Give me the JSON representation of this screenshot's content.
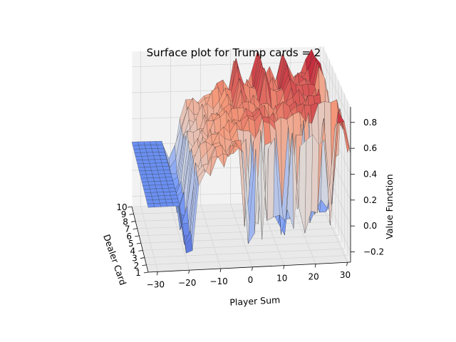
{
  "chart_data": {
    "type": "surface3d",
    "title": "Surface plot for Trump cards = 2",
    "xlabel": "Player Sum",
    "ylabel": "Dealer Card",
    "zlabel": "Value Function",
    "x_ticks": [
      -30,
      -20,
      -10,
      0,
      10,
      20,
      30
    ],
    "y_ticks": [
      1,
      2,
      3,
      4,
      5,
      6,
      7,
      8,
      9,
      10
    ],
    "z_ticks": [
      -0.2,
      0.0,
      0.2,
      0.4,
      0.6,
      0.8
    ],
    "x_tick_labels": [
      "−30",
      "−20",
      "−10",
      "0",
      "10",
      "20",
      "30"
    ],
    "y_tick_labels": [
      "1",
      "2",
      "3",
      "4",
      "5",
      "6",
      "7",
      "8",
      "9",
      "10"
    ],
    "z_tick_labels": [
      "−0.2",
      "0.0",
      "0.2",
      "0.4",
      "0.6",
      "0.8"
    ],
    "xlim": [
      -33,
      31
    ],
    "ylim": [
      1,
      10
    ],
    "zlim": [
      -0.28,
      0.92
    ],
    "colormap": "coolwarm",
    "grid": true,
    "x": [
      -33,
      -31,
      -29,
      -27,
      -25,
      -23,
      -21,
      -19,
      -17,
      -15,
      -13,
      -11,
      -9,
      -7,
      -5,
      -3,
      -1,
      1,
      3,
      5,
      7,
      9,
      11,
      13,
      15,
      17,
      19,
      21,
      23,
      25,
      27,
      29,
      31
    ],
    "value_profile_by_player_sum": [
      0.22,
      0.22,
      0.22,
      0.22,
      0.22,
      0.2,
      0.08,
      0.18,
      0.4,
      0.46,
      0.5,
      0.53,
      0.56,
      0.58,
      0.6,
      0.62,
      0.63,
      0.64,
      0.65,
      0.66,
      0.66,
      0.67,
      0.68,
      0.69,
      0.7,
      0.71,
      0.72,
      0.73,
      0.74,
      0.75,
      0.8,
      0.77,
      0.6
    ]
  }
}
